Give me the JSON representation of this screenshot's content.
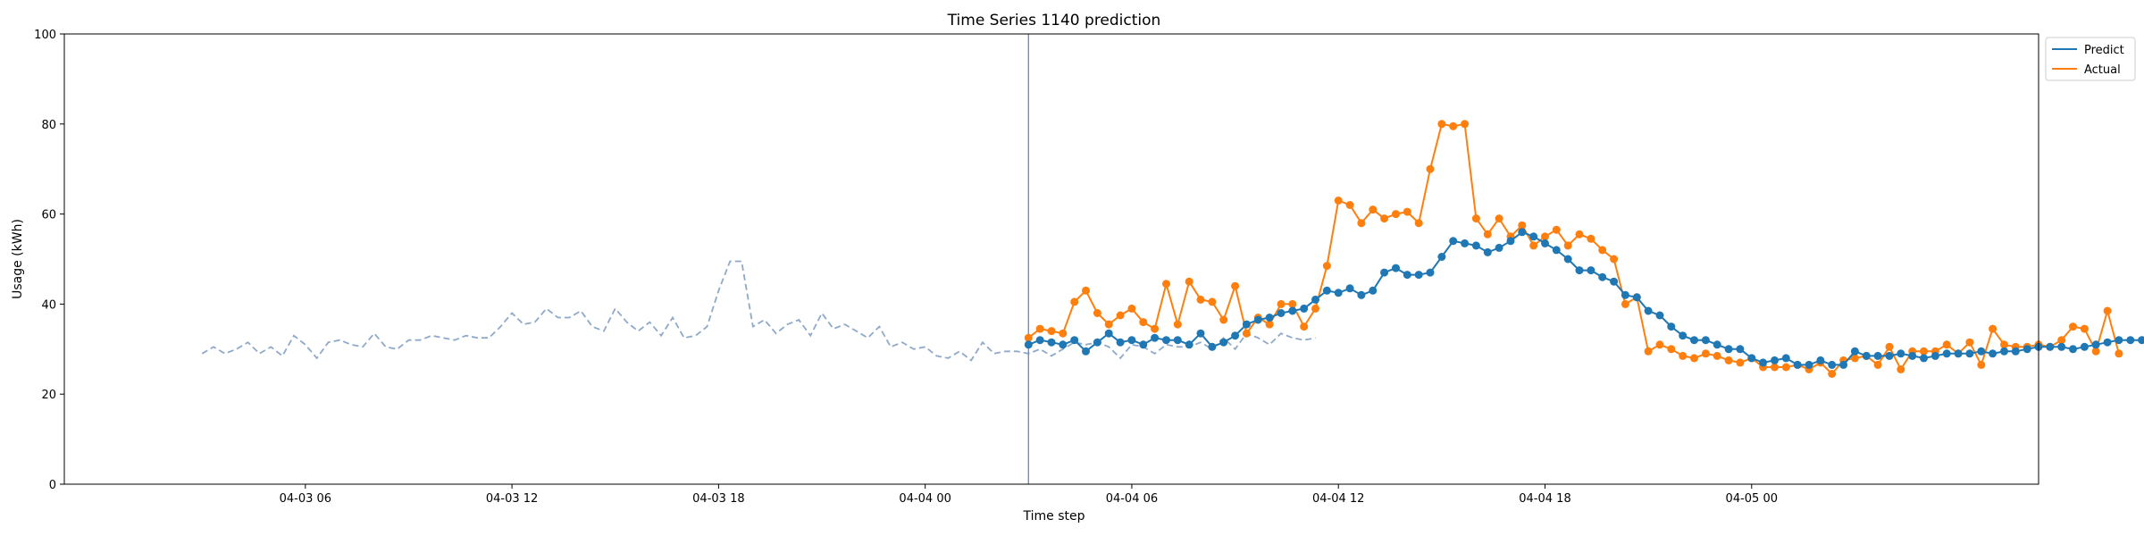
{
  "chart_data": {
    "type": "line",
    "title": "Time Series 1140 prediction",
    "xlabel": "Time step",
    "ylabel": "Usage (kWh)",
    "ylim": [
      0,
      100
    ],
    "xlim": [
      "2021-04-02 23:00",
      "2021-04-05 08:20"
    ],
    "yticks": [
      0,
      20,
      40,
      60,
      80,
      100
    ],
    "xticks": [
      {
        "t": "2021-04-03 06:00",
        "label": "04-03 06"
      },
      {
        "t": "2021-04-03 12:00",
        "label": "04-03 12"
      },
      {
        "t": "2021-04-03 18:00",
        "label": "04-03 18"
      },
      {
        "t": "2021-04-04 00:00",
        "label": "04-04 00"
      },
      {
        "t": "2021-04-04 06:00",
        "label": "04-04 06"
      },
      {
        "t": "2021-04-04 12:00",
        "label": "04-04 12"
      },
      {
        "t": "2021-04-04 18:00",
        "label": "04-04 18"
      },
      {
        "t": "2021-04-05 00:00",
        "label": "04-05 00"
      }
    ],
    "grid": false,
    "legend_position": "top-right, outside plot",
    "forecast_start": "2021-04-04 03:00",
    "colors": {
      "history": "#8fa9c9",
      "predict": "#1f77b4",
      "actual": "#ff7f0e",
      "divider": "#6f8fc2"
    },
    "history": {
      "start": "2021-04-03 03:00",
      "step_minutes": 20,
      "values": [
        29,
        30.5,
        29,
        30,
        31.5,
        29,
        30.5,
        28.5,
        33,
        31,
        28,
        31.5,
        32,
        31,
        30.5,
        33.5,
        30.5,
        30,
        32,
        32,
        33,
        32.5,
        32,
        33,
        32.5,
        32.5,
        35,
        38,
        35.5,
        36,
        39,
        37,
        37,
        38.5,
        35,
        34,
        39,
        36,
        34,
        36,
        33,
        37,
        32.5,
        33,
        35,
        43,
        49.5,
        49.5,
        35,
        36.5,
        33.5,
        35.5,
        36.5,
        33,
        38,
        34.5,
        35.5,
        34,
        32.5,
        35,
        30.5,
        31.5,
        30,
        30.5,
        28.5,
        28,
        29.5,
        27.5,
        31.5,
        29,
        29.5,
        29.5,
        29,
        30,
        28.5,
        30,
        31.5,
        31,
        31.5,
        30.5,
        28,
        31,
        30.5,
        29,
        31,
        30.5,
        30.5,
        31.5,
        30,
        32.5,
        30,
        33.5,
        32.5,
        31,
        33.5,
        32.5,
        32,
        32.5
      ]
    },
    "series": [
      {
        "name": "Predict",
        "start": "2021-04-04 03:00",
        "step_minutes": 20,
        "values": [
          31,
          32,
          31.5,
          31,
          32,
          29.5,
          31.5,
          33.5,
          31.5,
          32,
          31,
          32.5,
          32,
          32,
          31,
          33.5,
          30.5,
          31.5,
          33,
          35.5,
          36.5,
          37,
          38,
          38.5,
          39,
          41,
          43,
          42.5,
          43.5,
          42,
          43,
          47,
          48,
          46.5,
          46.5,
          47,
          50.5,
          54,
          53.5,
          53,
          51.5,
          52.5,
          54,
          56,
          55,
          53.5,
          52,
          50,
          47.5,
          47.5,
          46,
          45,
          42,
          41.5,
          38.5,
          37.5,
          35,
          33,
          32,
          32,
          31,
          30,
          30,
          28,
          27,
          27.5,
          28,
          26.5,
          26.5,
          27.5,
          26.5,
          26.5,
          29.5,
          28.5,
          28.5,
          28.5,
          29,
          28.5,
          28,
          28.5,
          29,
          29,
          29,
          29.5,
          29,
          29.5,
          29.5,
          30,
          30.5,
          30.5,
          30.5,
          30,
          30.5,
          31,
          31.5,
          32,
          32,
          32
        ]
      },
      {
        "name": "Actual",
        "start": "2021-04-04 03:00",
        "step_minutes": 20,
        "values": [
          32.5,
          34.5,
          34,
          33.5,
          40.5,
          43,
          38,
          35.5,
          37.5,
          39,
          36,
          34.5,
          44.5,
          35.5,
          45,
          41,
          40.5,
          36.5,
          44,
          33.5,
          37,
          35.5,
          40,
          40,
          35,
          39,
          48.5,
          63,
          62,
          58,
          61,
          59,
          60,
          60.5,
          58,
          70,
          80,
          79.5,
          80,
          59,
          55.5,
          59,
          55,
          57.5,
          53,
          55,
          56.5,
          53,
          55.5,
          54.5,
          52,
          50,
          40,
          41.5,
          29.5,
          31,
          30,
          28.5,
          28,
          29,
          28.5,
          27.5,
          27,
          28,
          26,
          26,
          26,
          26.5,
          25.5,
          27,
          24.5,
          27.5,
          28,
          28.5,
          26.5,
          30.5,
          25.5,
          29.5,
          29.5,
          29.5,
          31,
          29,
          31.5,
          26.5,
          34.5,
          31,
          30.5,
          30.5,
          31,
          30.5,
          32,
          35,
          34.5,
          29.5,
          38.5,
          29
        ]
      }
    ]
  }
}
